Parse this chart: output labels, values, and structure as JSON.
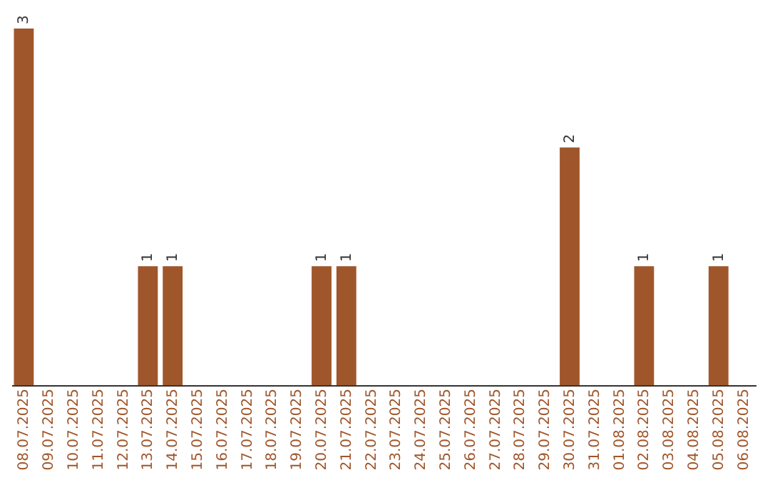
{
  "chart_data": {
    "type": "bar",
    "categories": [
      "08.07.2025",
      "09.07.2025",
      "10.07.2025",
      "11.07.2025",
      "12.07.2025",
      "13.07.2025",
      "14.07.2025",
      "15.07.2025",
      "16.07.2025",
      "17.07.2025",
      "18.07.2025",
      "19.07.2025",
      "20.07.2025",
      "21.07.2025",
      "22.07.2025",
      "23.07.2025",
      "24.07.2025",
      "25.07.2025",
      "26.07.2025",
      "27.07.2025",
      "28.07.2025",
      "29.07.2025",
      "30.07.2025",
      "31.07.2025",
      "01.08.2025",
      "02.08.2025",
      "03.08.2025",
      "04.08.2025",
      "05.08.2025",
      "06.08.2025"
    ],
    "values": [
      3,
      0,
      0,
      0,
      0,
      1,
      1,
      0,
      0,
      0,
      0,
      0,
      1,
      1,
      0,
      0,
      0,
      0,
      0,
      0,
      0,
      0,
      2,
      0,
      0,
      1,
      0,
      0,
      1,
      0
    ],
    "value_labels": [
      "3",
      null,
      null,
      null,
      null,
      "1",
      "1",
      null,
      null,
      null,
      null,
      null,
      "1",
      "1",
      null,
      null,
      null,
      null,
      null,
      null,
      null,
      null,
      "2",
      null,
      null,
      "1",
      null,
      null,
      "1",
      null
    ],
    "color": "#a0562b",
    "tick_labels": "x"
  }
}
